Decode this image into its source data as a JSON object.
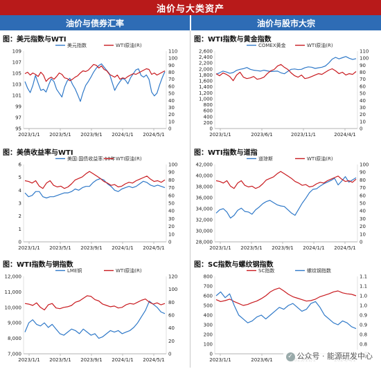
{
  "header": {
    "title": "油价与大类资产"
  },
  "columns": {
    "left": "油价与债券汇率",
    "right": "油价与股市大宗"
  },
  "watermark": "公众号 · 能源研发中心",
  "chart_data": [
    {
      "id": "p1",
      "type": "line",
      "title": "图：美元指数与WTI",
      "x_ticks": [
        "2023/1/1",
        "2023/5/1",
        "2023/9/1",
        "2024/1/1",
        "2024/5/1"
      ],
      "y_left": {
        "min": 95,
        "max": 109,
        "ticks": [
          "95",
          "97",
          "99",
          "101",
          "103",
          "105",
          "107",
          "109"
        ]
      },
      "y_right": {
        "min": 0,
        "max": 110,
        "ticks": [
          "0",
          "10",
          "20",
          "30",
          "40",
          "50",
          "60",
          "70",
          "80",
          "90",
          "100",
          "110"
        ]
      },
      "legend": "top",
      "series": [
        {
          "name": "美元指数",
          "axis": "left",
          "color": "#2e78c8",
          "values": [
            103.5,
            102.3,
            101.5,
            102.8,
            104.6,
            103.2,
            101.9,
            102.1,
            101.6,
            102.9,
            104.0,
            103.5,
            102.1,
            101.4,
            100.7,
            102.5,
            103.6,
            104.1,
            103.0,
            102.2,
            101.1,
            99.9,
            101.5,
            102.8,
            103.5,
            104.3,
            105.2,
            105.9,
            106.4,
            106.7,
            106.1,
            105.5,
            104.9,
            103.4,
            101.9,
            102.8,
            103.5,
            104.1,
            103.8,
            103.1,
            104.2,
            104.9,
            105.6,
            105.8,
            104.6,
            104.3,
            104.7,
            103.9,
            101.6,
            100.9,
            101.4,
            102.9,
            104.2,
            105.3
          ]
        },
        {
          "name": "WTI原油(R)",
          "axis": "right",
          "color": "#c8191e",
          "values": [
            78,
            80,
            76,
            79,
            77,
            74,
            80,
            76,
            67,
            71,
            73,
            70,
            74,
            79,
            77,
            72,
            71,
            68,
            70,
            73,
            75,
            79,
            82,
            81,
            83,
            87,
            91,
            90,
            86,
            89,
            84,
            82,
            77,
            75,
            73,
            76,
            70,
            72,
            71,
            74,
            76,
            78,
            77,
            79,
            81,
            83,
            85,
            84,
            77,
            79,
            76,
            78,
            80,
            82
          ]
        }
      ]
    },
    {
      "id": "p2",
      "type": "line",
      "title": "图：WTI指数与黄金指数",
      "x_ticks": [
        "2023/1/1",
        "2023/6/1",
        "2023/11/1",
        "2024/4/1"
      ],
      "y_left": {
        "min": 0,
        "max": 2600,
        "ticks": [
          "0",
          "200",
          "400",
          "600",
          "800",
          "1,000",
          "1,200",
          "1,400",
          "1,600",
          "1,800",
          "2,000",
          "2,200",
          "2,400",
          "2,600"
        ]
      },
      "y_right": {
        "min": 0,
        "max": 110,
        "ticks": [
          "0",
          "10",
          "20",
          "30",
          "40",
          "50",
          "60",
          "70",
          "80",
          "90",
          "100",
          "110"
        ]
      },
      "legend": "top",
      "series": [
        {
          "name": "COMEX黄金",
          "axis": "left",
          "color": "#2e78c8",
          "values": [
            1825,
            1870,
            1930,
            1900,
            1855,
            1880,
            1955,
            1990,
            2010,
            2050,
            1990,
            1960,
            1945,
            1930,
            1960,
            1935,
            1915,
            1925,
            1930,
            1870,
            1840,
            1920,
            1990,
            2000,
            1980,
            1990,
            2040,
            2070,
            2060,
            2020,
            2040,
            2060,
            2100,
            2200,
            2330,
            2390,
            2340,
            2380,
            2420,
            2360,
            2320,
            2350
          ]
        },
        {
          "name": "WTI原油(R)",
          "axis": "right",
          "color": "#c8191e",
          "values": [
            78,
            75,
            79,
            77,
            74,
            68,
            76,
            80,
            73,
            71,
            72,
            74,
            70,
            71,
            73,
            78,
            82,
            84,
            89,
            91,
            87,
            84,
            79,
            75,
            73,
            76,
            71,
            72,
            74,
            76,
            78,
            77,
            80,
            83,
            85,
            82,
            78,
            80,
            76,
            78,
            77,
            81
          ]
        }
      ]
    },
    {
      "id": "p3",
      "type": "line",
      "title": "图：美债收益率与WTI",
      "x_ticks": [
        "2023/1/1",
        "2023/5/1",
        "2023/9/1",
        "2024/1/1",
        "2024/5/1"
      ],
      "y_left": {
        "min": 0,
        "max": 6,
        "ticks": [
          "0",
          "1",
          "2",
          "3",
          "4",
          "5",
          "6"
        ]
      },
      "y_right": {
        "min": 0,
        "max": 100,
        "ticks": [
          "0",
          "10",
          "20",
          "30",
          "40",
          "50",
          "60",
          "70",
          "80",
          "90",
          "100"
        ]
      },
      "legend": "top",
      "series": [
        {
          "name": "美国:国债收益率:10年",
          "axis": "left",
          "color": "#2e78c8",
          "values": [
            3.8,
            3.5,
            3.6,
            3.9,
            3.9,
            3.5,
            3.4,
            3.5,
            3.5,
            3.6,
            3.7,
            3.8,
            3.8,
            3.9,
            4.1,
            4.0,
            4.2,
            4.3,
            4.3,
            4.6,
            4.8,
            4.9,
            4.8,
            4.5,
            4.3,
            4.0,
            3.9,
            4.1,
            4.2,
            4.3,
            4.2,
            4.3,
            4.5,
            4.7,
            4.6,
            4.4,
            4.3,
            4.4,
            4.3,
            4.2
          ]
        },
        {
          "name": "WTI原油(R)",
          "axis": "right",
          "color": "#c8191e",
          "values": [
            79,
            78,
            76,
            79,
            72,
            69,
            76,
            79,
            73,
            71,
            72,
            69,
            71,
            75,
            80,
            82,
            84,
            88,
            91,
            88,
            85,
            82,
            78,
            76,
            73,
            74,
            71,
            72,
            75,
            77,
            76,
            79,
            81,
            83,
            85,
            81,
            78,
            79,
            77,
            80
          ]
        }
      ]
    },
    {
      "id": "p4",
      "type": "line",
      "title": "图：WTI指数与道指",
      "x_ticks": [
        "2023/1/1",
        "2023/5/1",
        "2023/9/1",
        "2024/1/1",
        "2024/5/1"
      ],
      "y_left": {
        "min": 28000,
        "max": 42000,
        "ticks": [
          "28,000",
          "30,000",
          "32,000",
          "34,000",
          "36,000",
          "38,000",
          "40,000",
          "42,000"
        ]
      },
      "y_right": {
        "min": 0,
        "max": 100,
        "ticks": [
          "0",
          "10",
          "20",
          "30",
          "40",
          "50",
          "60",
          "70",
          "80",
          "90",
          "100"
        ]
      },
      "legend": "top",
      "series": [
        {
          "name": "道琼斯",
          "axis": "left",
          "color": "#2e78c8",
          "values": [
            33200,
            33800,
            34000,
            33400,
            32300,
            32800,
            33700,
            34100,
            33500,
            33400,
            33000,
            33800,
            34300,
            34900,
            35300,
            35500,
            35100,
            34700,
            34500,
            34400,
            33800,
            33200,
            32800,
            33900,
            35000,
            35900,
            36900,
            37500,
            37600,
            38100,
            38500,
            38800,
            39100,
            39500,
            38300,
            39000,
            39800,
            38800,
            39200,
            39600
          ]
        },
        {
          "name": "WTI原油(R)",
          "axis": "right",
          "color": "#c8191e",
          "values": [
            79,
            78,
            76,
            79,
            72,
            69,
            76,
            79,
            73,
            71,
            72,
            69,
            71,
            75,
            80,
            82,
            84,
            88,
            91,
            88,
            85,
            82,
            78,
            76,
            73,
            74,
            71,
            72,
            75,
            77,
            76,
            79,
            81,
            83,
            85,
            81,
            78,
            79,
            77,
            81
          ]
        }
      ]
    },
    {
      "id": "p5",
      "type": "line",
      "title": "图：WTI指数与铜指数",
      "x_ticks": [
        "2023/1/1",
        "2023/5/1",
        "2023/9/1",
        "2024/1/1",
        "2024/5/1"
      ],
      "y_left": {
        "min": 7000,
        "max": 12000,
        "ticks": [
          "7,000",
          "8,000",
          "9,000",
          "10,000",
          "11,000",
          "12,000"
        ]
      },
      "y_right": {
        "min": 0,
        "max": 120,
        "ticks": [
          "0",
          "20",
          "40",
          "60",
          "80",
          "100",
          "120"
        ]
      },
      "legend": "top",
      "series": [
        {
          "name": "LME铜",
          "axis": "left",
          "color": "#2e78c8",
          "values": [
            8400,
            9000,
            9200,
            8900,
            8800,
            9000,
            8700,
            8900,
            8600,
            8300,
            8200,
            8400,
            8600,
            8500,
            8300,
            8600,
            8400,
            8200,
            8300,
            8000,
            8100,
            8300,
            8500,
            8400,
            8500,
            8300,
            8400,
            8500,
            8700,
            9000,
            9400,
            9800,
            10400,
            10200,
            10000,
            9700,
            9600
          ]
        },
        {
          "name": "WTI原油(R)",
          "axis": "right",
          "color": "#c8191e",
          "values": [
            78,
            77,
            75,
            79,
            72,
            68,
            76,
            78,
            71,
            70,
            72,
            73,
            75,
            80,
            82,
            86,
            90,
            89,
            84,
            82,
            77,
            75,
            73,
            74,
            71,
            72,
            76,
            78,
            77,
            80,
            83,
            85,
            80,
            77,
            79,
            76,
            78
          ]
        }
      ]
    },
    {
      "id": "p6",
      "type": "line",
      "title": "图：SC指数与螺纹钢指数",
      "x_ticks": [
        "2023/1/1",
        "2023/6/1",
        "2023/11/1",
        "2024/4/1"
      ],
      "y_left": {
        "min": 0,
        "max": 800,
        "ticks": [
          "0",
          "100",
          "200",
          "300",
          "400",
          "500",
          "600",
          "700",
          "800"
        ]
      },
      "y_right": {
        "min": 0.7,
        "max": 1.1,
        "ticks": [
          "0.7",
          "0.8",
          "0.8",
          "0.9",
          "0.9",
          "1.0",
          "1.0",
          "1.1",
          "1.1"
        ]
      },
      "legend": "top",
      "series": [
        {
          "name": "SC指数",
          "axis": "left",
          "color": "#c8191e",
          "values": [
            560,
            540,
            550,
            565,
            540,
            520,
            500,
            510,
            530,
            545,
            570,
            600,
            640,
            665,
            680,
            650,
            615,
            590,
            575,
            560,
            545,
            550,
            565,
            590,
            605,
            620,
            640,
            650,
            630,
            620,
            615,
            600
          ]
        },
        {
          "name": "螺纹钢指数",
          "axis": "right",
          "color": "#2e78c8",
          "values": [
            1.0,
            1.02,
            0.99,
            1.01,
            0.95,
            0.9,
            0.88,
            0.86,
            0.87,
            0.89,
            0.9,
            0.88,
            0.9,
            0.92,
            0.94,
            0.93,
            0.95,
            0.96,
            0.94,
            0.92,
            0.93,
            0.96,
            0.97,
            0.94,
            0.9,
            0.88,
            0.86,
            0.85,
            0.87,
            0.86,
            0.84,
            0.83
          ]
        }
      ]
    }
  ]
}
